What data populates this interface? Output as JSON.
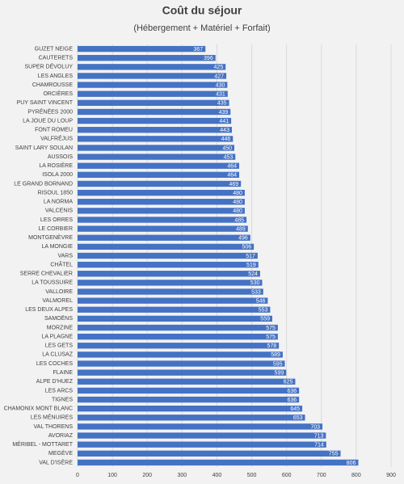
{
  "chart_data": {
    "type": "bar",
    "orientation": "horizontal",
    "title": "Coût du séjour",
    "subtitle": "(Hébergement + Matériel + Forfait)",
    "categories": [
      "GUZET NEIGE",
      "CAUTERETS",
      "SUPER DÉVOLUY",
      "LES ANGLES",
      "CHAMROUSSE",
      "ORCIÈRES",
      "PUY SAINT VINCENT",
      "PYRÉNÉES 2000",
      "LA JOUE DU LOUP",
      "FONT ROMEU",
      "VALFRÉJUS",
      "SAINT LARY SOULAN",
      "AUSSOIS",
      "LA ROSIÈRE",
      "ISOLA 2000",
      "LE GRAND BORNAND",
      "RISOUL 1850",
      "LA NORMA",
      "VALCENIS",
      "LES ORRES",
      "LE CORBIER",
      "MONTGENÈVRE",
      "LA MONGIE",
      "VARS",
      "CHÂTEL",
      "SERRE CHEVALIER",
      "LA TOUSSUIRE",
      "VALLOIRE",
      "VALMOREL",
      "LES DEUX ALPES",
      "SAMOËNS",
      "MORZINE",
      "LA PLAGNE",
      "LES GETS",
      "LA CLUSAZ",
      "LES COCHES",
      "FLAINE",
      "ALPE D'HUEZ",
      "LES ARCS",
      "TIGNES",
      "CHAMONIX MONT BLANC",
      "LES MÉNUIRES",
      "VAL THORENS",
      "AVORIAZ",
      "MÉRIBEL - MOTTARET",
      "MEGÈVE",
      "VAL D'ISÈRE"
    ],
    "values": [
      367,
      396,
      425,
      427,
      430,
      431,
      435,
      439,
      441,
      443,
      446,
      450,
      453,
      464,
      464,
      469,
      480,
      480,
      480,
      485,
      489,
      496,
      506,
      517,
      519,
      524,
      530,
      533,
      546,
      553,
      559,
      575,
      575,
      578,
      589,
      595,
      599,
      625,
      636,
      636,
      645,
      653,
      703,
      713,
      714,
      755,
      806
    ],
    "color": "#4472c4",
    "xlim": [
      0,
      900
    ],
    "xticks": [
      0,
      100,
      200,
      300,
      400,
      500,
      600,
      700,
      800,
      900
    ],
    "grid": true
  }
}
